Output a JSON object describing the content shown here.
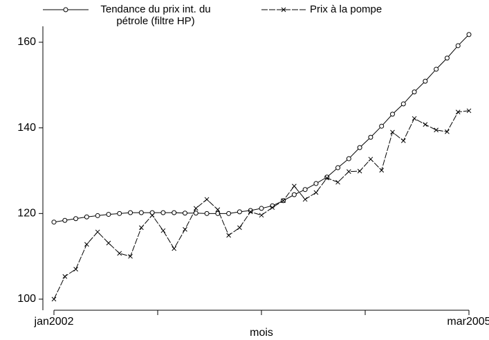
{
  "chart_data": {
    "type": "line",
    "x_label": "mois",
    "categories": [
      "jan2002",
      null,
      null,
      null,
      null,
      null,
      null,
      null,
      null,
      null,
      null,
      null,
      null,
      null,
      null,
      null,
      null,
      null,
      null,
      null,
      null,
      null,
      null,
      null,
      null,
      null,
      null,
      null,
      null,
      null,
      null,
      null,
      null,
      null,
      null,
      null,
      null,
      null,
      "mar2005"
    ],
    "xticks": [
      0,
      9.5,
      19,
      28.5,
      38
    ],
    "ylim": [
      100,
      160
    ],
    "yticks": [
      100,
      120,
      140,
      160
    ],
    "series": [
      {
        "name": "Tendance du prix int. du pétrole (filtre HP)",
        "color": "#000000",
        "marker": "circle",
        "values": [
          118.0,
          118.4,
          118.8,
          119.2,
          119.5,
          119.8,
          120.0,
          120.2,
          120.2,
          120.2,
          120.2,
          120.2,
          120.1,
          120.1,
          120.0,
          120.0,
          120.0,
          120.4,
          120.7,
          121.2,
          121.8,
          123.0,
          124.4,
          125.6,
          127.0,
          128.5,
          130.7,
          132.8,
          135.4,
          137.8,
          140.4,
          143.2,
          145.6,
          148.4,
          150.9,
          153.7,
          156.3,
          159.2,
          161.8
        ]
      },
      {
        "name": "Prix à la pompe",
        "color": "#000000",
        "marker": "x",
        "values": [
          100.0,
          105.3,
          107.0,
          112.8,
          115.7,
          113.1,
          110.7,
          110.0,
          116.7,
          119.6,
          116.0,
          111.8,
          116.3,
          121.2,
          123.3,
          120.9,
          114.9,
          116.7,
          120.4,
          119.6,
          121.4,
          123.0,
          126.4,
          123.3,
          124.9,
          128.3,
          127.3,
          129.8,
          129.9,
          132.7,
          130.1,
          139.0,
          137.0,
          142.2,
          140.8,
          139.5,
          139.1,
          143.7,
          144.0
        ]
      }
    ]
  }
}
